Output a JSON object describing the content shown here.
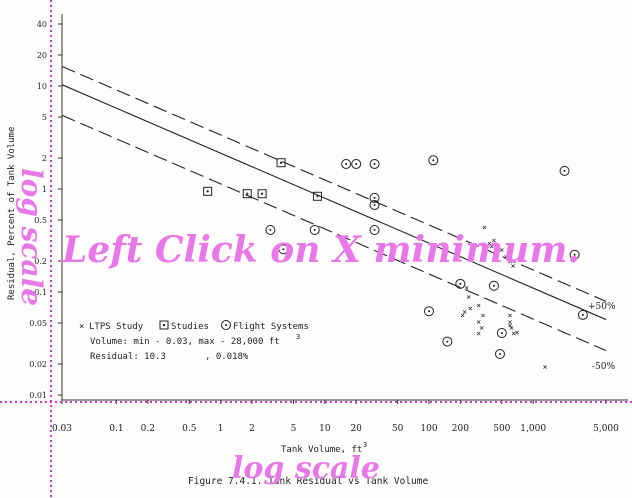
{
  "chart_data": {
    "type": "scatter",
    "xlabel": "Tank Volume, ft",
    "xlabel_sup": "3",
    "ylabel": "Residual, Percent of Tank Volume",
    "x_scale": "log",
    "y_scale": "log",
    "xlim": [
      0.03,
      5000
    ],
    "ylim": [
      0.01,
      40
    ],
    "x_ticks": [
      {
        "v": 0.03,
        "label": "0.03"
      },
      {
        "v": 0.1,
        "label": "0.1"
      },
      {
        "v": 0.2,
        "label": "0.2"
      },
      {
        "v": 0.5,
        "label": "0.5"
      },
      {
        "v": 1,
        "label": "1"
      },
      {
        "v": 2,
        "label": "2"
      },
      {
        "v": 5,
        "label": "5"
      },
      {
        "v": 10,
        "label": "10"
      },
      {
        "v": 20,
        "label": "20"
      },
      {
        "v": 50,
        "label": "50"
      },
      {
        "v": 100,
        "label": "100"
      },
      {
        "v": 200,
        "label": "200"
      },
      {
        "v": 500,
        "label": "500"
      },
      {
        "v": 1000,
        "label": "1,000"
      },
      {
        "v": 5000,
        "label": "5,000"
      }
    ],
    "y_ticks": [
      {
        "v": 0.01,
        "label": "0.01"
      },
      {
        "v": 0.02,
        "label": "0.02"
      },
      {
        "v": 0.05,
        "label": "0.05"
      },
      {
        "v": 0.1,
        "label": "0.1"
      },
      {
        "v": 0.2,
        "label": "0.2"
      },
      {
        "v": 0.5,
        "label": "0.5"
      },
      {
        "v": 1,
        "label": "1"
      },
      {
        "v": 2,
        "label": "2"
      },
      {
        "v": 5,
        "label": "5"
      },
      {
        "v": 10,
        "label": "10"
      },
      {
        "v": 20,
        "label": "20"
      },
      {
        "v": 40,
        "label": "40"
      }
    ],
    "lines": [
      {
        "name": "+50%",
        "style": "dashed",
        "x": [
          0.03,
          5000
        ],
        "y": [
          15.5,
          0.081
        ]
      },
      {
        "name": "",
        "style": "solid",
        "x": [
          0.03,
          5000
        ],
        "y": [
          10.3,
          0.054
        ]
      },
      {
        "name": "-50%",
        "style": "dashed",
        "x": [
          0.03,
          5000
        ],
        "y": [
          5.2,
          0.027
        ]
      }
    ],
    "line_labels": [
      "+50%",
      "-50%"
    ],
    "series": [
      {
        "name": "LTPS Study",
        "marker": "x",
        "points": [
          [
            380,
            0.3
          ],
          [
            400,
            0.28
          ],
          [
            420,
            0.32
          ],
          [
            450,
            0.25
          ],
          [
            500,
            0.26
          ],
          [
            550,
            0.22
          ],
          [
            600,
            0.2
          ],
          [
            640,
            0.18
          ],
          [
            230,
            0.11
          ],
          [
            240,
            0.09
          ],
          [
            220,
            0.065
          ],
          [
            210,
            0.06
          ],
          [
            250,
            0.07
          ],
          [
            300,
            0.075
          ],
          [
            330,
            0.06
          ],
          [
            300,
            0.052
          ],
          [
            600,
            0.06
          ],
          [
            600,
            0.052
          ],
          [
            600,
            0.048
          ],
          [
            620,
            0.045
          ],
          [
            650,
            0.04
          ],
          [
            700,
            0.041
          ],
          [
            320,
            0.045
          ],
          [
            300,
            0.04
          ],
          [
            340,
            0.43
          ],
          [
            1300,
            0.019
          ]
        ]
      },
      {
        "name": "Studies",
        "marker": "square",
        "points": [
          [
            0.75,
            0.95
          ],
          [
            1.8,
            0.9
          ],
          [
            2.5,
            0.9
          ],
          [
            3.8,
            1.8
          ],
          [
            8.5,
            0.85
          ]
        ]
      },
      {
        "name": "Flight Systems",
        "marker": "circle",
        "points": [
          [
            16,
            1.75
          ],
          [
            20,
            1.75
          ],
          [
            30,
            1.75
          ],
          [
            110,
            1.9
          ],
          [
            30,
            0.82
          ],
          [
            30,
            0.7
          ],
          [
            3,
            0.4
          ],
          [
            8,
            0.4
          ],
          [
            30,
            0.4
          ],
          [
            4,
            0.26
          ],
          [
            2000,
            1.5
          ],
          [
            2500,
            0.23
          ],
          [
            200,
            0.12
          ],
          [
            420,
            0.115
          ],
          [
            100,
            0.065
          ],
          [
            3000,
            0.06
          ],
          [
            150,
            0.033
          ],
          [
            500,
            0.04
          ],
          [
            480,
            0.025
          ]
        ]
      }
    ],
    "legend": [
      "LTPS Study",
      "Studies",
      "Flight Systems"
    ],
    "annotation_lines": [
      "Volume:  min - 0.03, max - 28,000 ft",
      "Residual:  10.3",
      ", 0.018%"
    ],
    "annotation_sup": "3",
    "caption": "Figure 7.4.1.  Tank Residual vs Tank Volume"
  },
  "overlay": {
    "instruction": "Left Click on X minimum.",
    "y_axis_note": "log scale",
    "x_axis_note": "log scale",
    "color": "#e878e8",
    "guide_color": "#cc33cc"
  }
}
